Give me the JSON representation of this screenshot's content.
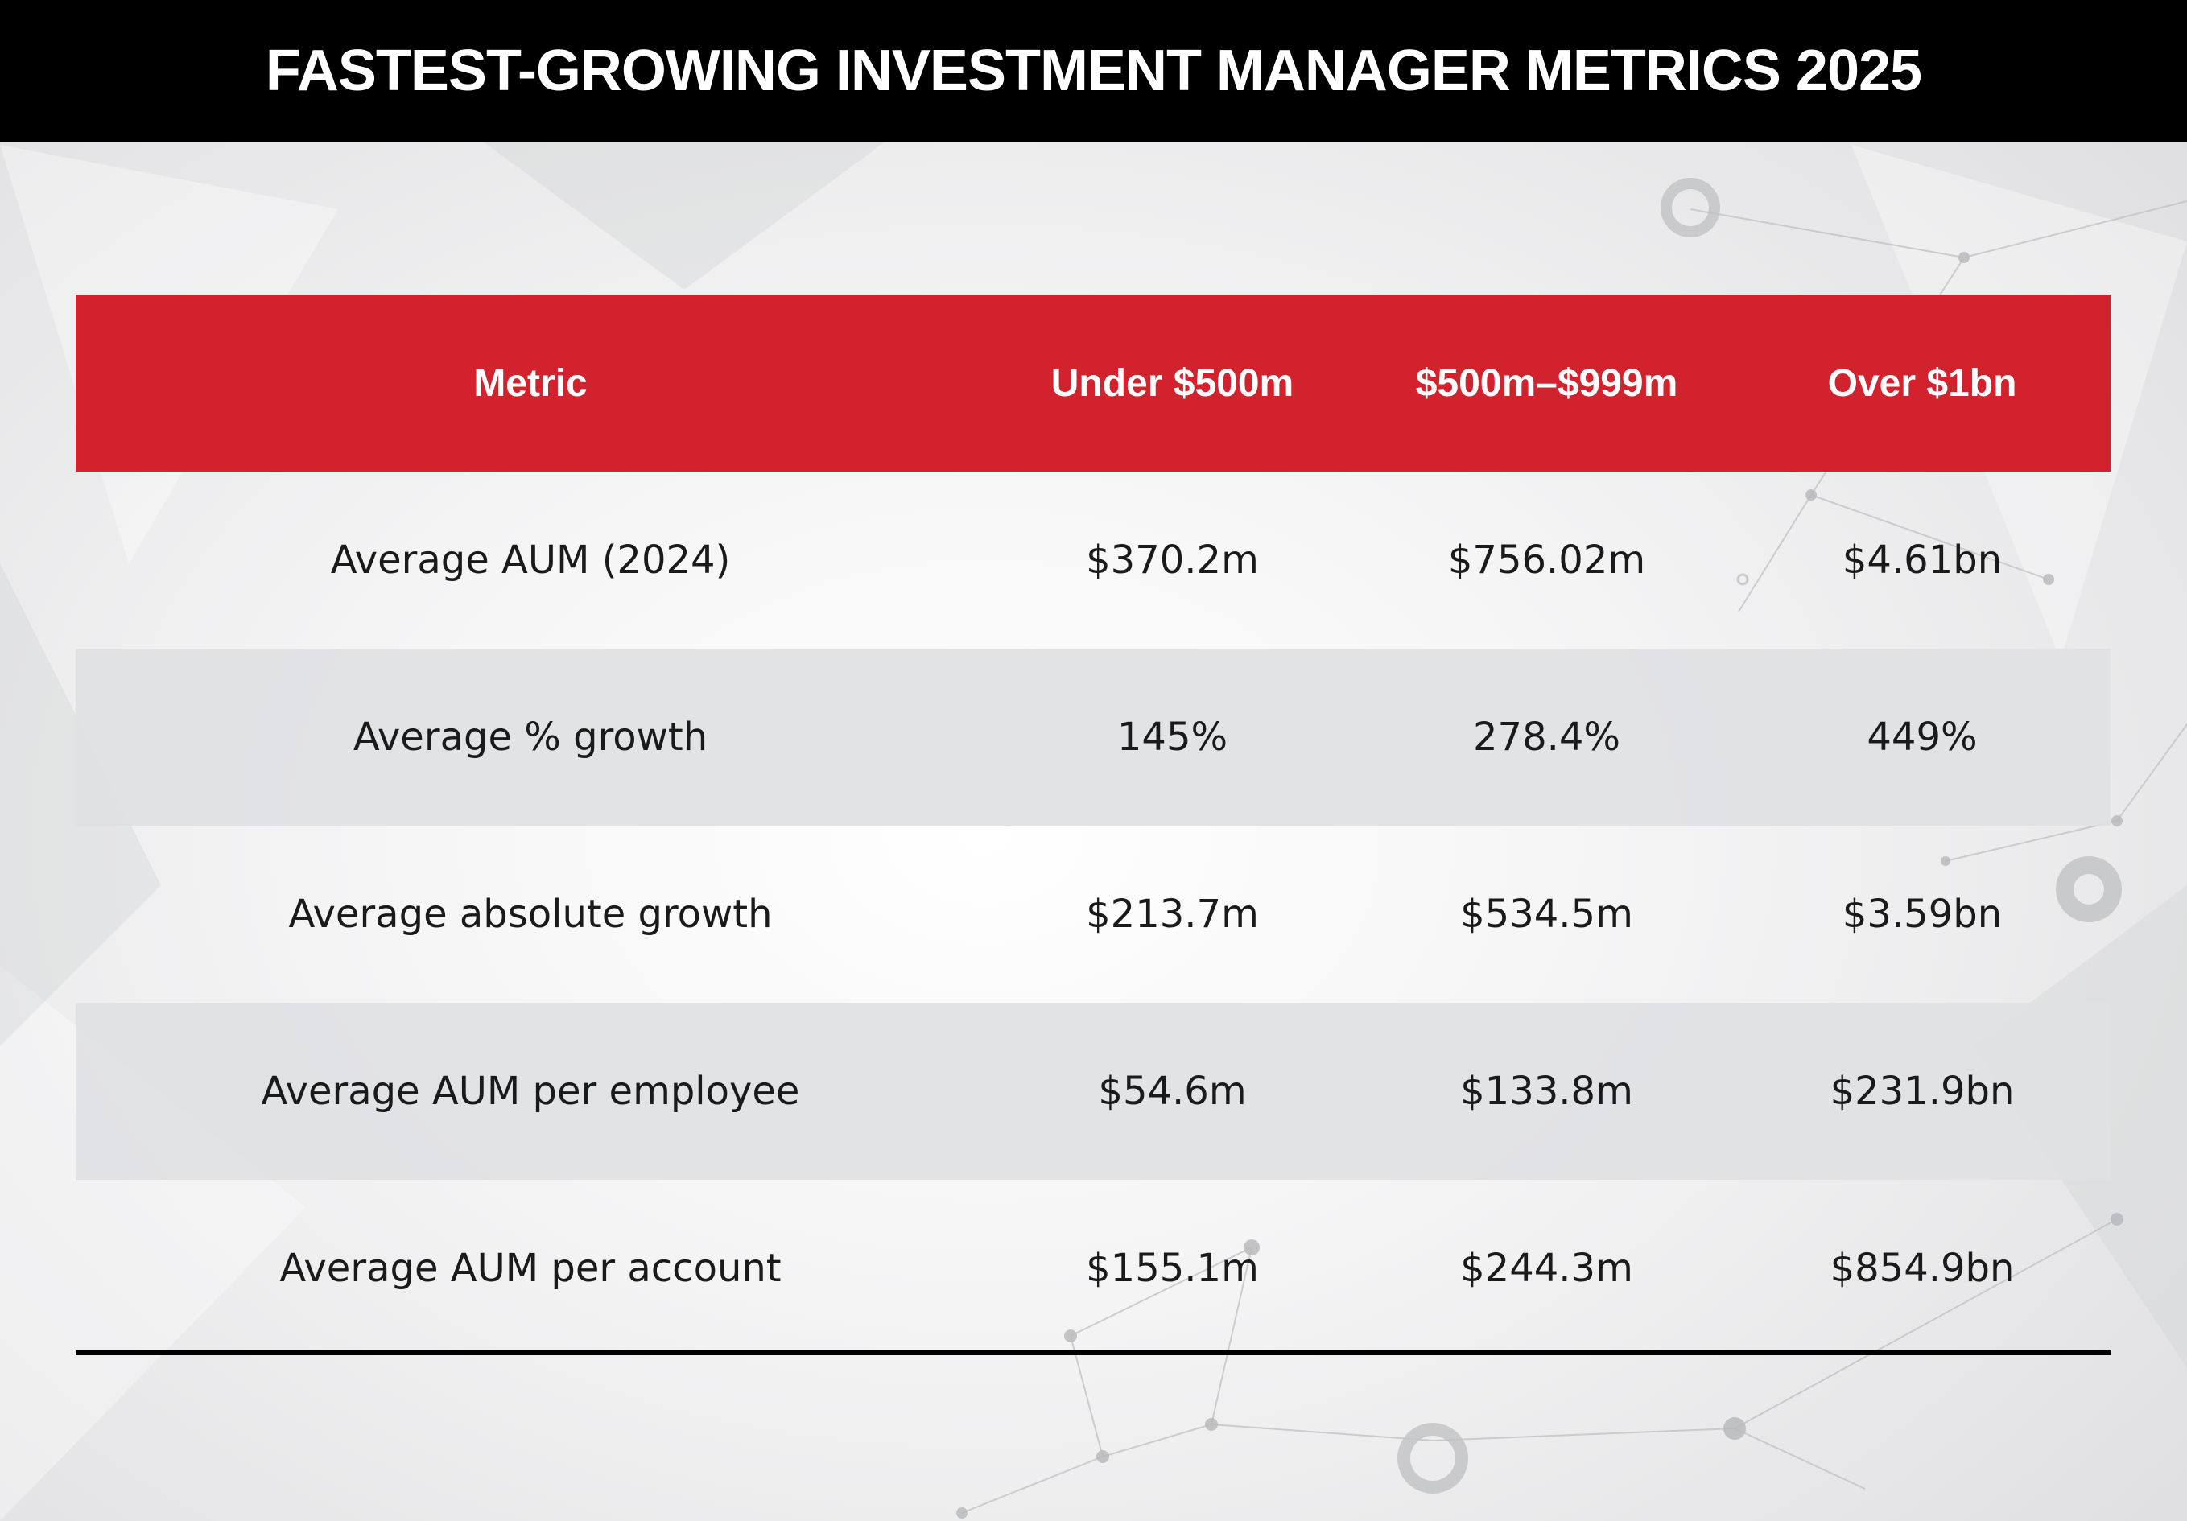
{
  "title": "FASTEST-GROWING INVESTMENT MANAGER METRICS 2025",
  "colors": {
    "title_bar": "#000000",
    "header_bar": "#D2222D",
    "shaded_row": "#E0E1E3",
    "text": "#1A1A1A"
  },
  "chart_data": {
    "type": "table",
    "title": "FASTEST-GROWING INVESTMENT MANAGER METRICS 2025",
    "columns": [
      "Metric",
      "Under $500m",
      "$500m–$999m",
      "Over $1bn"
    ],
    "rows": [
      [
        "Average AUM (2024)",
        "$370.2m",
        "$756.02m",
        "$4.61bn"
      ],
      [
        "Average % growth",
        "145%",
        "278.4%",
        "449%"
      ],
      [
        "Average absolute growth",
        "$213.7m",
        "$534.5m",
        "$3.59bn"
      ],
      [
        "Average AUM per employee",
        "$54.6m",
        "$133.8m",
        "$231.9bn"
      ],
      [
        "Average AUM per account",
        "$155.1m",
        "$244.3m",
        "$854.9bn"
      ]
    ]
  }
}
